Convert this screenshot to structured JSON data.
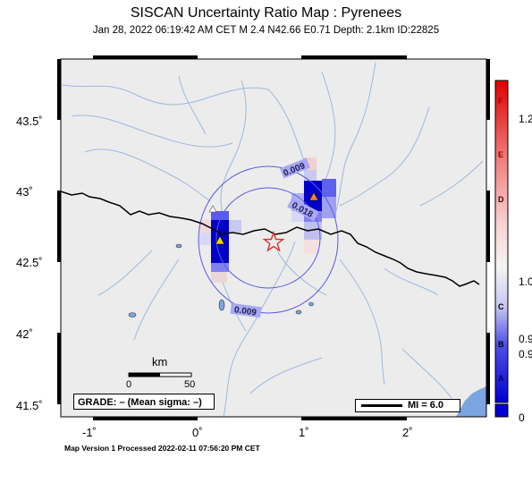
{
  "header": {
    "title": "SISCAN Uncertainty Ratio Map : Pyrenees",
    "subtitle": "Jan 28, 2022 06:19:42 AM CET   M 2.4   N42.66 E0.71   Depth: 2.1km   ID:22825"
  },
  "axes": {
    "lat_labels": [
      "43.5˚",
      "43˚",
      "42.5˚",
      "42˚",
      "41.5˚"
    ],
    "lon_labels": [
      "-1˚",
      "0˚",
      "1˚",
      "2˚"
    ]
  },
  "contours": {
    "labels": [
      "0.009",
      "0.018",
      "0.009"
    ]
  },
  "scale_bar": {
    "unit": "km",
    "start": "0",
    "end": "50"
  },
  "grade": {
    "text": "GRADE: – (Mean sigma: –)"
  },
  "mmi_legend": {
    "label": "MI = 6.0"
  },
  "colorbar": {
    "letters": [
      "F",
      "E",
      "D",
      "C",
      "B",
      "A"
    ],
    "values": [
      "1.2",
      "1.0",
      "0.9",
      "0.9",
      "0"
    ],
    "top_color": "#e00000",
    "mid_color": "#f4f4f4",
    "bottom_color": "#0000d0"
  },
  "footer": {
    "text": "Map Version 1 Processed 2022-02-11 07:56:20 PM CET"
  },
  "colors": {
    "land": "#ececec",
    "water": "#7aa5e0",
    "rivers": "#9fb8dc",
    "border": "#000000",
    "contour": "#5a5ae8",
    "epicenter": "#e03030",
    "station": "#f5d000"
  },
  "icons": {
    "epicenter": "star-icon",
    "station": "triangle-icon"
  }
}
